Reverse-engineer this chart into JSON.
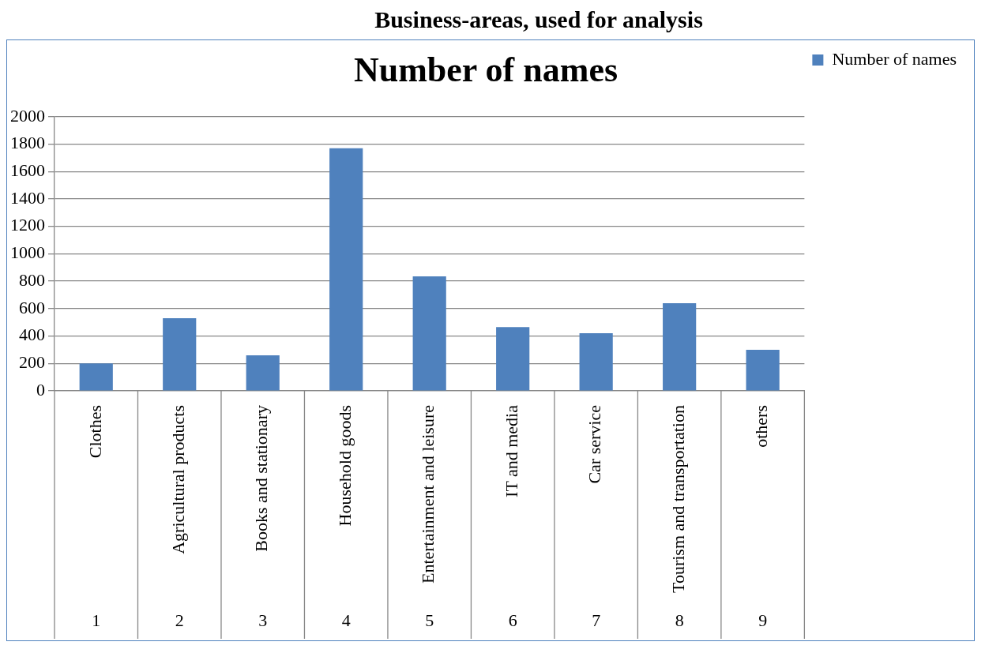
{
  "chart_data": {
    "type": "bar",
    "title": "Number of names",
    "subtitle": "Business-areas, used for analysis",
    "categories": [
      "Clothes",
      "Agricultural products",
      "Books and stationary",
      "Household goods",
      "Entertainment and leisure",
      "IT and media",
      "Car service",
      "Tourism and transportation",
      "others"
    ],
    "series": [
      {
        "name": "Number of names",
        "color": "#4f81bd",
        "values": [
          200,
          530,
          260,
          1770,
          835,
          465,
          420,
          640,
          300
        ]
      }
    ],
    "annotations": [
      "1",
      "2",
      "3",
      "4",
      "5",
      "6",
      "7",
      "8",
      "9"
    ],
    "ylim": [
      0,
      2000
    ],
    "yticks": [
      0,
      200,
      400,
      600,
      800,
      1000,
      1200,
      1400,
      1600,
      1800,
      2000
    ],
    "grid": "y",
    "legend": "top right"
  }
}
